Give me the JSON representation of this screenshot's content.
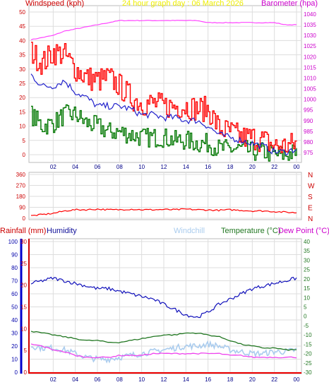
{
  "header": {
    "wind_label": "Windspeed (kph)",
    "center_label": "24 hour graph day : 06 March 2026",
    "baro_label": "Barometer (hpa)"
  },
  "lower_legend": {
    "rain": "Rainfall (mm)",
    "humidity": "Humidity",
    "windchill": "Windchill",
    "temperature": "Temperature (°C)",
    "dewpoint": "Dew Point (°C)"
  },
  "colors": {
    "wind": "#ff0000",
    "avg_wind": "#2222cc",
    "green": "#007700",
    "baro": "#ff44ff",
    "humidity": "#1111bb",
    "windchill": "#aaccee",
    "temperature": "#227722",
    "dewpoint": "#ee44ee",
    "rain_axis": "#cc0000",
    "grid": "#dddddd"
  },
  "chart_data": [
    {
      "type": "line",
      "name": "wind-barometer",
      "x_ticks": [
        "02",
        "04",
        "06",
        "08",
        "10",
        "12",
        "14",
        "16",
        "18",
        "20",
        "22",
        "00"
      ],
      "y_left": {
        "label": "Windspeed (kph)",
        "ticks": [
          0,
          5,
          10,
          15,
          20,
          25,
          30,
          35,
          40,
          45,
          50
        ],
        "ylim": [
          0,
          50
        ]
      },
      "y_right": {
        "label": "Barometer (hpa)",
        "ticks": [
          975,
          980,
          985,
          990,
          995,
          1000,
          1005,
          1010,
          1015,
          1020,
          1025,
          1030,
          1035,
          1040
        ],
        "ylim": [
          974,
          1041
        ]
      },
      "x_hours": [
        0,
        1,
        2,
        3,
        4,
        5,
        6,
        7,
        8,
        9,
        10,
        11,
        12,
        13,
        14,
        15,
        16,
        17,
        18,
        19,
        20,
        21,
        22,
        23,
        24
      ],
      "series": [
        {
          "key": "gust",
          "values": [
            36,
            32,
            36,
            35,
            30,
            27,
            26,
            27,
            24,
            20,
            18,
            18,
            17,
            17,
            17,
            16,
            16,
            9,
            8,
            6,
            6,
            5,
            3,
            3,
            4
          ]
        },
        {
          "key": "avg",
          "values": [
            28,
            24,
            24,
            26,
            22,
            20,
            17,
            17,
            17,
            16,
            14,
            14,
            13,
            13,
            12,
            12,
            10,
            7,
            6,
            5,
            4,
            3,
            1,
            1,
            2
          ]
        },
        {
          "key": "low",
          "values": [
            14,
            10,
            11,
            14,
            14,
            11,
            10,
            8,
            8,
            7,
            6,
            6,
            6,
            5,
            5,
            4,
            4,
            2,
            2,
            2,
            1,
            1,
            0,
            0,
            1
          ]
        },
        {
          "key": "baro",
          "values": [
            1028,
            1029,
            1030,
            1032,
            1033,
            1034,
            1035,
            1036,
            1037,
            1037,
            1037,
            1037,
            1037,
            1037,
            1037,
            1037,
            1036,
            1036,
            1036,
            1036,
            1036,
            1036,
            1036,
            1035,
            1035
          ]
        }
      ]
    },
    {
      "type": "line",
      "name": "wind-direction",
      "y_ticks": [
        360,
        270,
        180,
        90,
        0
      ],
      "direction_labels": [
        "N",
        "W",
        "S",
        "E",
        "N"
      ],
      "x_hours": [
        0,
        1,
        2,
        3,
        4,
        5,
        6,
        7,
        8,
        9,
        10,
        11,
        12,
        13,
        14,
        15,
        16,
        17,
        18,
        19,
        20,
        21,
        22,
        23,
        24
      ],
      "values": [
        20,
        30,
        40,
        60,
        70,
        70,
        75,
        70,
        70,
        75,
        70,
        70,
        72,
        70,
        75,
        70,
        68,
        65,
        70,
        65,
        60,
        60,
        55,
        50,
        45
      ]
    },
    {
      "type": "line",
      "name": "temperature-humidity",
      "x_ticks": [
        "02",
        "04",
        "06",
        "08",
        "10",
        "12",
        "14",
        "16",
        "18",
        "20",
        "22",
        "00"
      ],
      "y_humidity": {
        "ticks": [
          0,
          10,
          20,
          30,
          40,
          50,
          60,
          70,
          80,
          90,
          100
        ],
        "ylim": [
          0,
          100
        ]
      },
      "y_rain": {
        "ticks": [
          0,
          5,
          10,
          15,
          20,
          25,
          30
        ],
        "ylim": [
          0,
          30
        ]
      },
      "y_temp": {
        "ticks": [
          40,
          35,
          30,
          25,
          20,
          15,
          10,
          5,
          0,
          -5,
          -10,
          -15,
          -20,
          -25,
          -30
        ],
        "ylim": [
          -30,
          40
        ]
      },
      "x_hours": [
        0,
        1,
        2,
        3,
        4,
        5,
        6,
        7,
        8,
        9,
        10,
        11,
        12,
        13,
        14,
        15,
        16,
        17,
        18,
        19,
        20,
        21,
        22,
        23,
        24
      ],
      "series": [
        {
          "key": "humidity",
          "values": [
            68,
            70,
            72,
            70,
            68,
            66,
            64,
            64,
            62,
            60,
            58,
            56,
            52,
            48,
            44,
            42,
            46,
            52,
            56,
            60,
            64,
            66,
            68,
            70,
            72
          ]
        },
        {
          "key": "temperature",
          "values": [
            -8,
            -9,
            -10,
            -11,
            -12,
            -13,
            -13,
            -14,
            -14,
            -13,
            -12,
            -11,
            -10,
            -10,
            -9,
            -9,
            -10,
            -11,
            -13,
            -15,
            -16,
            -17,
            -17,
            -18,
            -18
          ]
        },
        {
          "key": "windchill",
          "values": [
            -16,
            -17,
            -17,
            -18,
            -20,
            -22,
            -23,
            -23,
            -22,
            -21,
            -20,
            -19,
            -18,
            -17,
            -16,
            -16,
            -15,
            -16,
            -18,
            -19,
            -20,
            -20,
            -19,
            -19,
            -18
          ]
        },
        {
          "key": "dewpoint",
          "values": [
            -15,
            -16,
            -18,
            -19,
            -21,
            -22,
            -22,
            -22,
            -21,
            -21,
            -21,
            -20,
            -20,
            -20,
            -20,
            -20,
            -20,
            -20,
            -21,
            -21,
            -22,
            -22,
            -22,
            -22,
            -22
          ]
        }
      ]
    }
  ]
}
